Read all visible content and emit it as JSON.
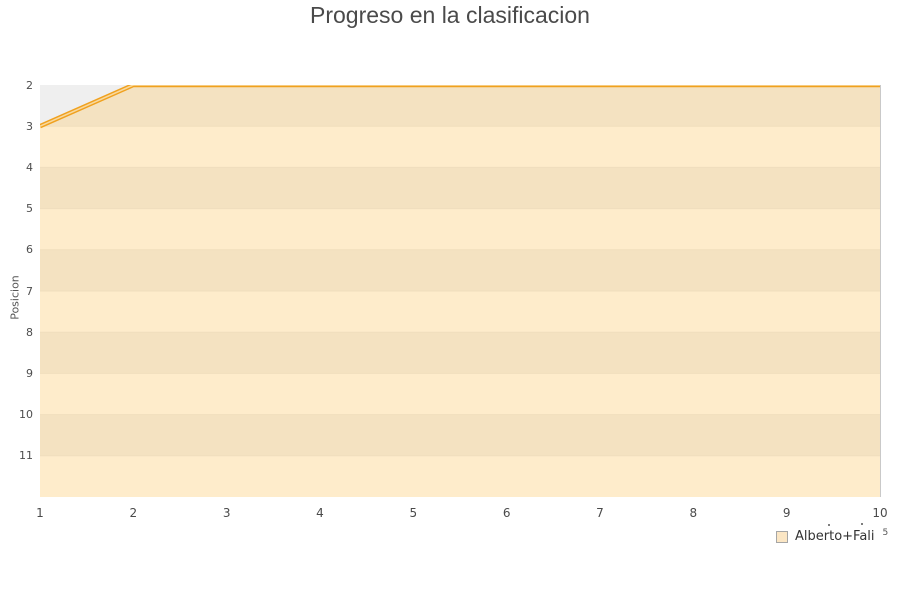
{
  "title": "Progreso en la clasificacion",
  "chart_data": {
    "type": "area",
    "title": "Progreso en la clasificacion",
    "xlabel": "",
    "ylabel": "Posicion",
    "x": [
      1,
      2,
      3,
      4,
      5,
      6,
      7,
      8,
      9,
      10
    ],
    "series": [
      {
        "name": "Alberto+Fali",
        "values": [
          3,
          2,
          2,
          2,
          2,
          2,
          2,
          2,
          2,
          2
        ]
      }
    ],
    "xticks": [
      1,
      2,
      3,
      4,
      5,
      6,
      7,
      8,
      9,
      10
    ],
    "yticks": [
      2,
      3,
      4,
      5,
      6,
      7,
      8,
      9,
      10,
      11
    ],
    "y_axis_inverted": true,
    "ylim_top": 2,
    "ylim_bottom": 12,
    "grid": true,
    "legend_position": "bottom-right",
    "colors": {
      "line": "#f0a11f",
      "line_highlight": "#f8d99f",
      "area_fill": "#fcd07d",
      "area_opacity": 0.4,
      "stripe_even": "#efefef",
      "stripe_odd": "#ffffff",
      "stripe_divider": "#e8e8e8"
    }
  },
  "legend": {
    "label": "Alberto+Fali",
    "superscript": "5"
  }
}
